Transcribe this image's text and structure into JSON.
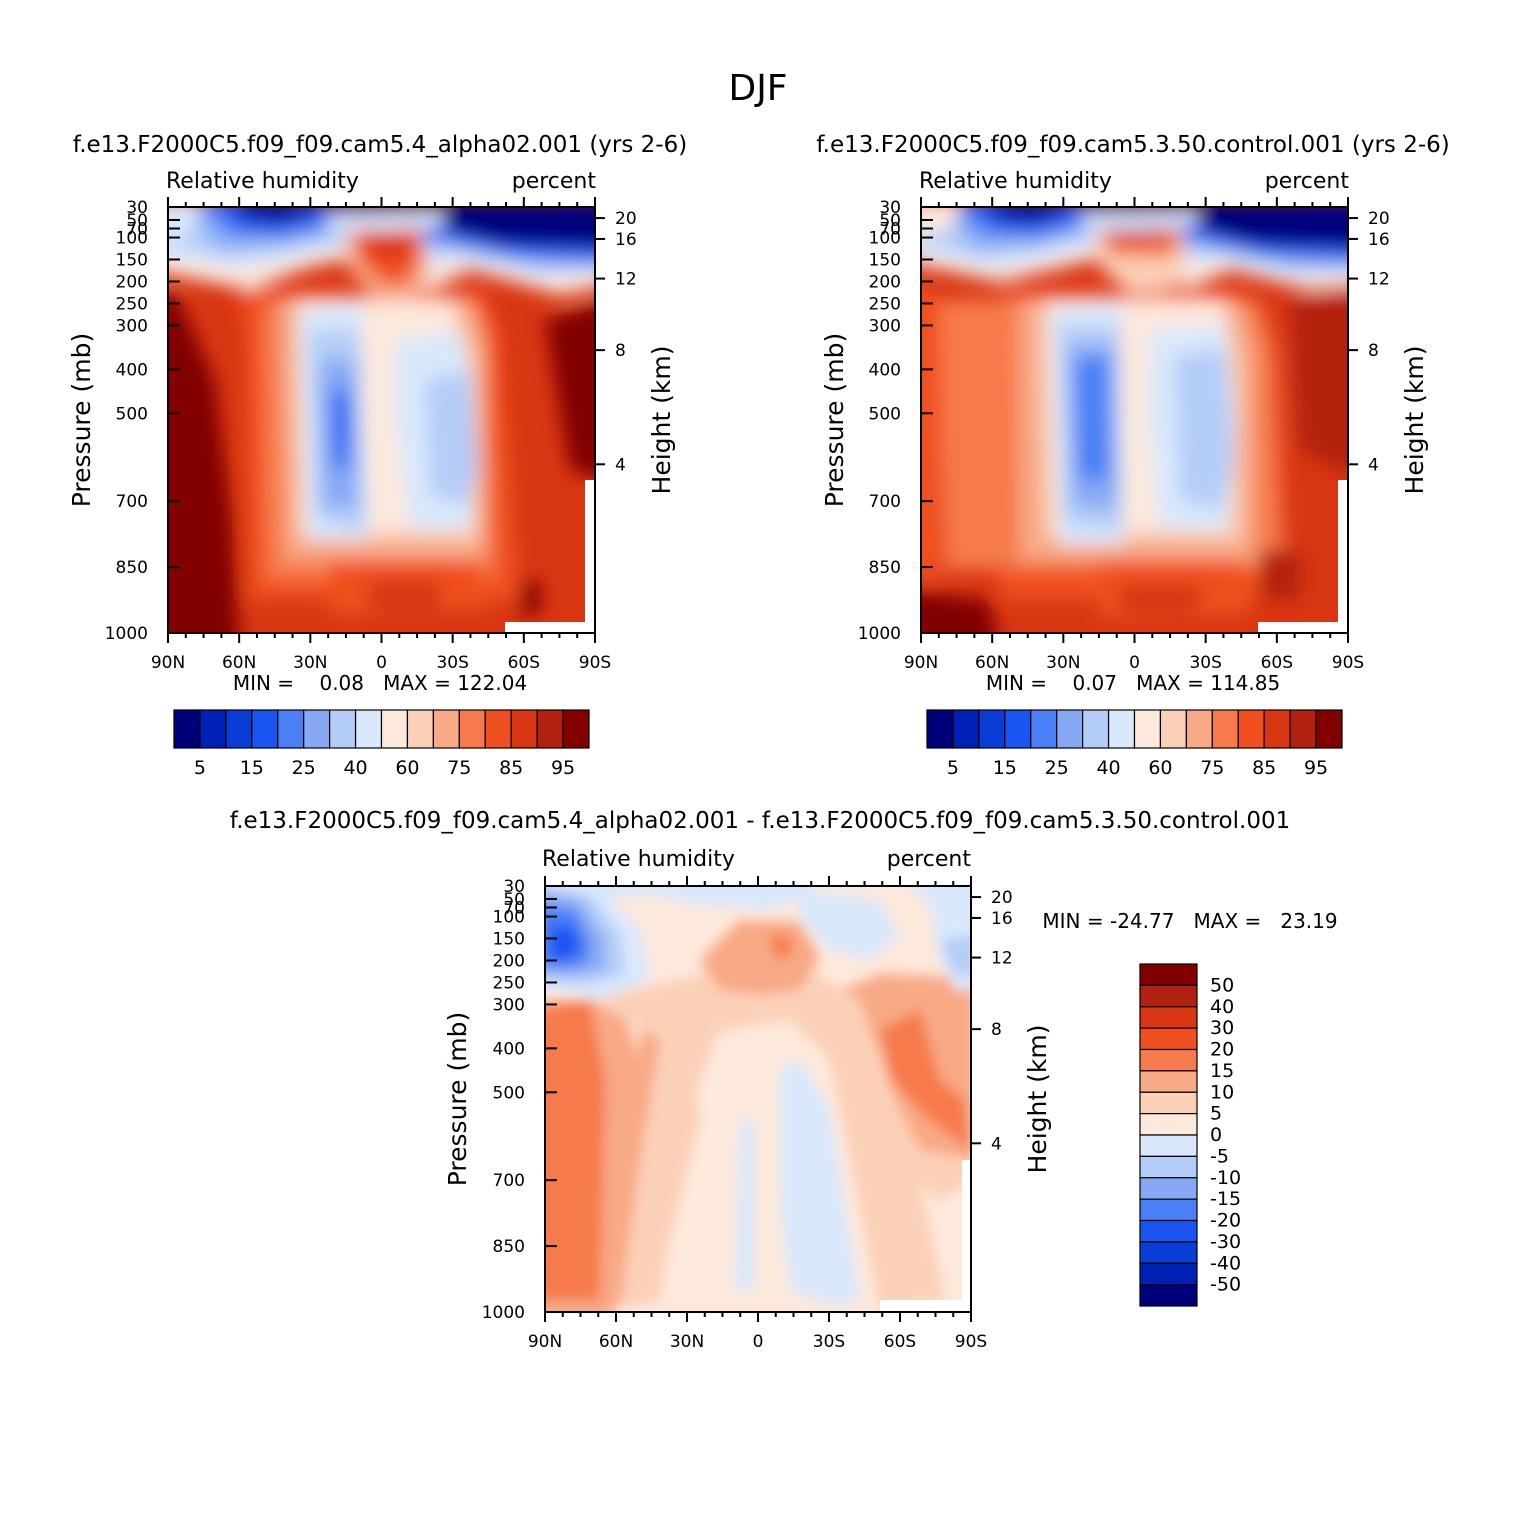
{
  "figure": {
    "title": "DJF"
  },
  "colors": {
    "abs_scale": [
      "#00007a",
      "#0021b5",
      "#0a3cd6",
      "#1a55f2",
      "#4a7ff5",
      "#87a9f4",
      "#b4ccf8",
      "#d9e8fb",
      "#fde9dc",
      "#fbd0b8",
      "#f8a985",
      "#f67a4c",
      "#f04f1f",
      "#d93613",
      "#b22010",
      "#820000"
    ],
    "diff_scale": [
      "#00007a",
      "#0021b5",
      "#0a3cd6",
      "#1a55f2",
      "#4a7ff5",
      "#87a9f4",
      "#b4ccf8",
      "#d9e8fb",
      "#fde9dc",
      "#fbd0b8",
      "#f8a985",
      "#f67a4c",
      "#f04f1f",
      "#d93613",
      "#b22010",
      "#820000"
    ]
  },
  "chart_data": [
    {
      "type": "heatmap",
      "panel": "top-left",
      "subtitle": "f.e13.F2000C5.f09_f09.cam5.4_alpha02.001 (yrs 2-6)",
      "variable": "Relative humidity",
      "units": "percent",
      "ylabel": "Pressure (mb)",
      "ylabel_right": "Height (km)",
      "x_ticks": [
        "90N",
        "60N",
        "30N",
        "0",
        "30S",
        "60S",
        "90S"
      ],
      "y_ticks": [
        "30",
        "50",
        "70",
        "100",
        "150",
        "200",
        "250",
        "300",
        "400",
        "500",
        "700",
        "850",
        "1000"
      ],
      "y_ticks_right": [
        "20",
        "16",
        "12",
        "8",
        "4"
      ],
      "min_max": "MIN =    0.08   MAX = 122.04",
      "colorbar_labels": [
        "5",
        "15",
        "25",
        "40",
        "60",
        "75",
        "85",
        "95"
      ]
    },
    {
      "type": "heatmap",
      "panel": "top-right",
      "subtitle": "f.e13.F2000C5.f09_f09.cam5.3.50.control.001 (yrs 2-6)",
      "variable": "Relative humidity",
      "units": "percent",
      "ylabel": "Pressure (mb)",
      "ylabel_right": "Height (km)",
      "x_ticks": [
        "90N",
        "60N",
        "30N",
        "0",
        "30S",
        "60S",
        "90S"
      ],
      "y_ticks": [
        "30",
        "50",
        "70",
        "100",
        "150",
        "200",
        "250",
        "300",
        "400",
        "500",
        "700",
        "850",
        "1000"
      ],
      "y_ticks_right": [
        "20",
        "16",
        "12",
        "8",
        "4"
      ],
      "min_max": "MIN =    0.07   MAX = 114.85",
      "colorbar_labels": [
        "5",
        "15",
        "25",
        "40",
        "60",
        "75",
        "85",
        "95"
      ]
    },
    {
      "type": "heatmap",
      "panel": "bottom",
      "subtitle": "f.e13.F2000C5.f09_f09.cam5.4_alpha02.001 - f.e13.F2000C5.f09_f09.cam5.3.50.control.001",
      "variable": "Relative humidity",
      "units": "percent",
      "ylabel": "Pressure (mb)",
      "ylabel_right": "Height (km)",
      "x_ticks": [
        "90N",
        "60N",
        "30N",
        "0",
        "30S",
        "60S",
        "90S"
      ],
      "y_ticks": [
        "30",
        "50",
        "70",
        "100",
        "150",
        "200",
        "250",
        "300",
        "400",
        "500",
        "700",
        "850",
        "1000"
      ],
      "y_ticks_right": [
        "20",
        "16",
        "12",
        "8",
        "4"
      ],
      "min_max": "MIN = -24.77   MAX =   23.19",
      "colorbar_labels": [
        "50",
        "40",
        "30",
        "20",
        "15",
        "10",
        "5",
        "0",
        "-5",
        "-10",
        "-15",
        "-20",
        "-30",
        "-40",
        "-50"
      ]
    }
  ]
}
